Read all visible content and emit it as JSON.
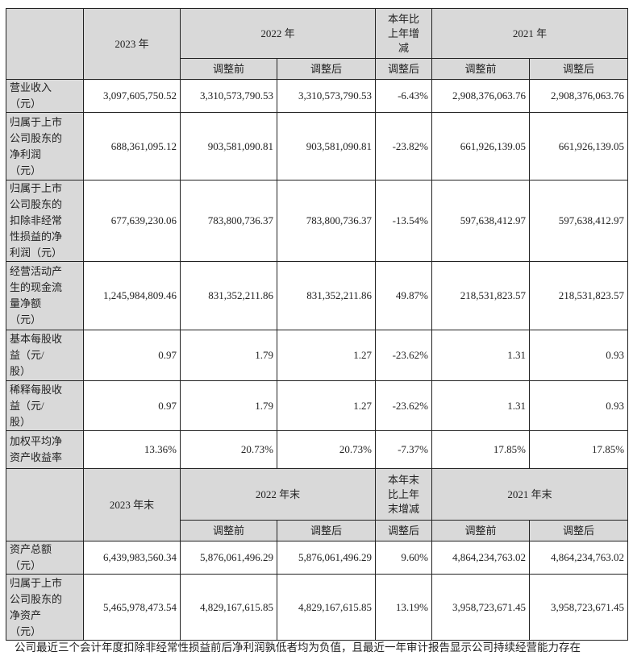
{
  "header1": {
    "y2023": "2023 年",
    "y2022": "2022 年",
    "change": "本年比\n上年增\n减",
    "y2021": "2021 年"
  },
  "header2": {
    "y2023": "2023 年末",
    "y2022": "2022 年末",
    "change": "本年末\n比上年\n末增减",
    "y2021": "2021 年末"
  },
  "sub": {
    "before": "调整前",
    "after": "调整后"
  },
  "rows1": [
    {
      "label": "营业收入\n（元）",
      "v": [
        "3,097,605,750.52",
        "3,310,573,790.53",
        "3,310,573,790.53",
        "-6.43%",
        "2,908,376,063.76",
        "2,908,376,063.76"
      ]
    },
    {
      "label": "归属于上市\n公司股东的\n净利润\n（元）",
      "v": [
        "688,361,095.12",
        "903,581,090.81",
        "903,581,090.81",
        "-23.82%",
        "661,926,139.05",
        "661,926,139.05"
      ]
    },
    {
      "label": "归属于上市\n公司股东的\n扣除非经常\n性损益的净\n利润（元）",
      "v": [
        "677,639,230.06",
        "783,800,736.37",
        "783,800,736.37",
        "-13.54%",
        "597,638,412.97",
        "597,638,412.97"
      ]
    },
    {
      "label": "经营活动产\n生的现金流\n量净额\n（元）",
      "v": [
        "1,245,984,809.46",
        "831,352,211.86",
        "831,352,211.86",
        "49.87%",
        "218,531,823.57",
        "218,531,823.57"
      ]
    },
    {
      "label": "基本每股收\n益（元/\n股）",
      "v": [
        "0.97",
        "1.79",
        "1.27",
        "-23.62%",
        "1.31",
        "0.93"
      ]
    },
    {
      "label": "稀释每股收\n益（元/\n股）",
      "v": [
        "0.97",
        "1.79",
        "1.27",
        "-23.62%",
        "1.31",
        "0.93"
      ]
    },
    {
      "label": "加权平均净\n资产收益率",
      "v": [
        "13.36%",
        "20.73%",
        "20.73%",
        "-7.37%",
        "17.85%",
        "17.85%"
      ]
    }
  ],
  "rows2": [
    {
      "label": "资产总额\n（元）",
      "v": [
        "6,439,983,560.34",
        "5,876,061,496.29",
        "5,876,061,496.29",
        "9.60%",
        "4,864,234,763.02",
        "4,864,234,763.02"
      ]
    },
    {
      "label": "归属于上市\n公司股东的\n净资产\n（元）",
      "v": [
        "5,465,978,473.54",
        "4,829,167,615.85",
        "4,829,167,615.85",
        "13.19%",
        "3,958,723,671.45",
        "3,958,723,671.45"
      ]
    }
  ],
  "footer": "公司最近三个会计年度扣除非经常性损益前后净利润孰低者均为负值，且最近一年审计报告显示公司持续经营能力存在"
}
